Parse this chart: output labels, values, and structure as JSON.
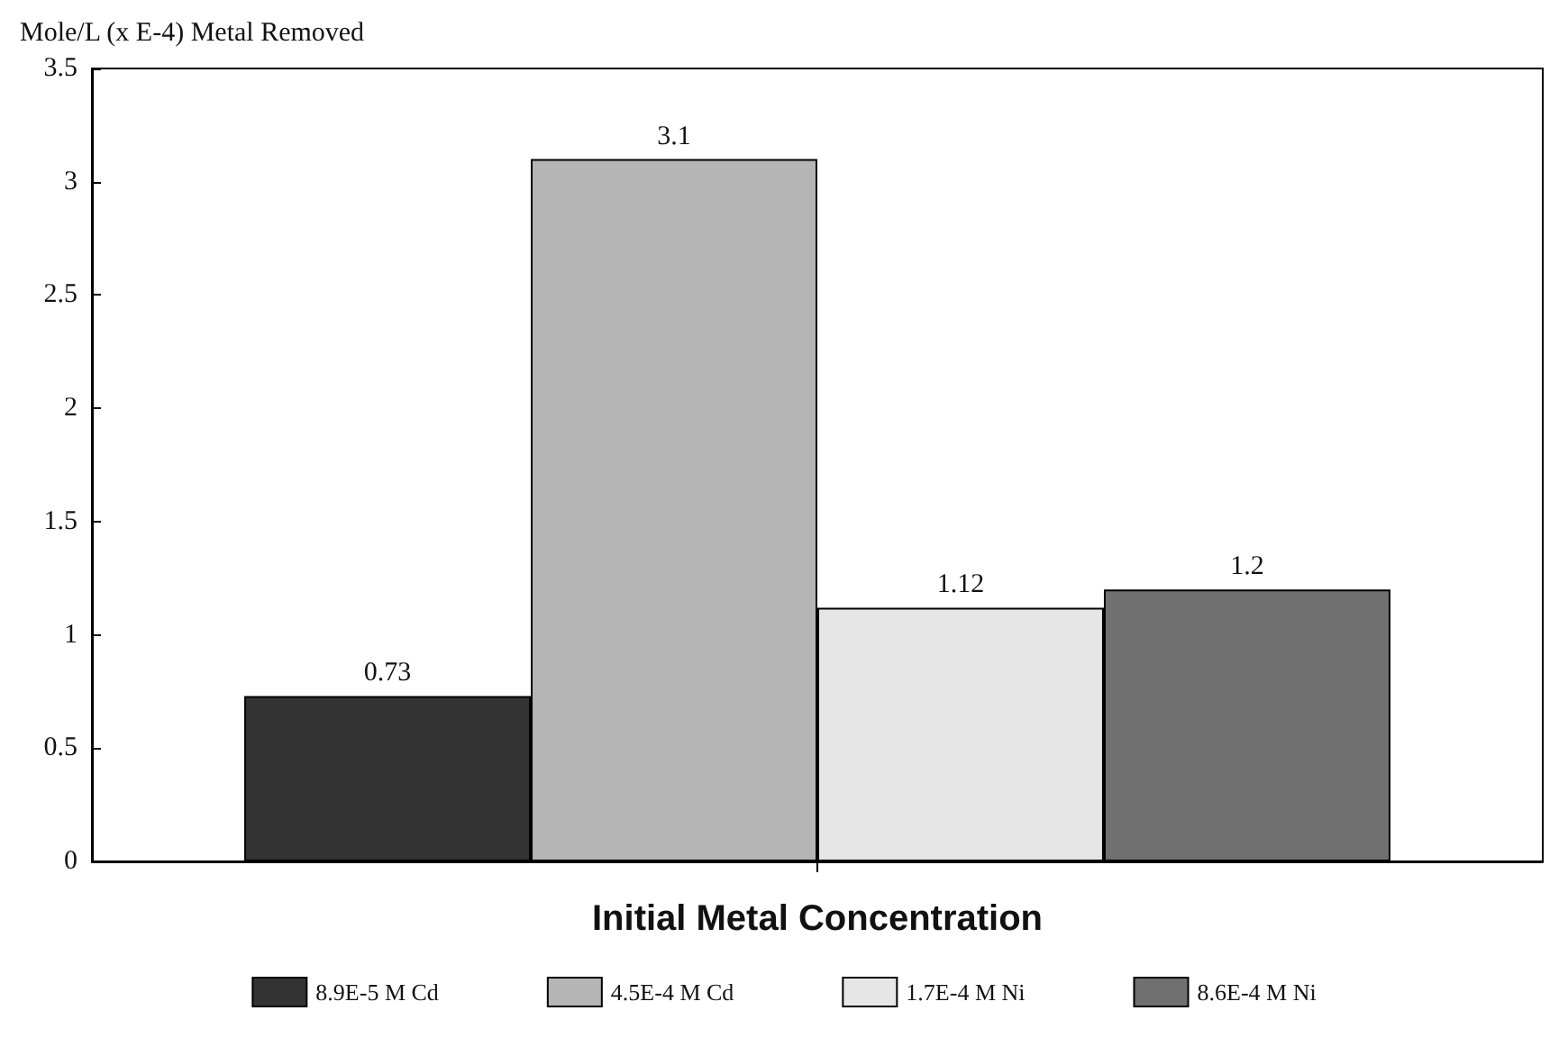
{
  "chart_data": {
    "type": "bar",
    "xlabel": "Initial Metal Concentration",
    "ylabel": "Mole/L (x E-4) Metal Removed",
    "categories": [
      null
    ],
    "series": [
      {
        "name": "8.9E-5 M Cd",
        "color": "#333333",
        "values": [
          0.73
        ]
      },
      {
        "name": "4.5E-4 M Cd",
        "color": "#b5b5b5",
        "values": [
          3.1
        ]
      },
      {
        "name": "1.7E-4 M Ni",
        "color": "#e6e6e6",
        "values": [
          1.12
        ]
      },
      {
        "name": "8.6E-4 M Ni",
        "color": "#707070",
        "values": [
          1.2
        ]
      }
    ],
    "ylim": [
      0,
      3.5
    ],
    "yticks": [
      0,
      0.5,
      1,
      1.5,
      2,
      2.5,
      3,
      3.5
    ],
    "data_labels": true,
    "legend": "bottom"
  }
}
